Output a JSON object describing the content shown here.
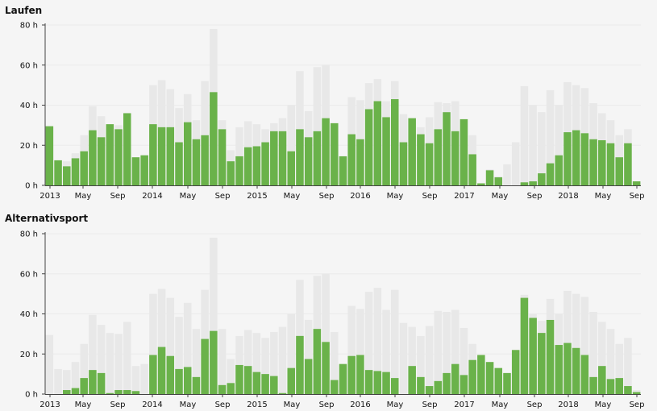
{
  "chart_data": [
    {
      "type": "bar",
      "title": "Laufen",
      "ylim": [
        0,
        80
      ],
      "yticks": [
        "0 h",
        "20 h",
        "40 h",
        "60 h",
        "80 h"
      ],
      "ytick_values": [
        0,
        20,
        40,
        60,
        80
      ],
      "x_tick_labels": [
        "2013",
        "May",
        "Sep",
        "2014",
        "May",
        "Sep",
        "2015",
        "May",
        "Sep",
        "2016",
        "May",
        "Sep",
        "2017",
        "May",
        "Sep",
        "2018",
        "May",
        "Sep"
      ],
      "colors": {
        "series": "#6ab24a",
        "background_series": "#e8e8e8"
      },
      "series": [
        {
          "values": [
            29.5,
            12.5,
            9.5,
            13.5,
            17,
            27.5,
            24,
            30.5,
            28,
            36,
            14,
            15,
            30.5,
            29,
            29,
            21.5,
            31.5,
            23,
            25,
            46.5,
            28,
            12,
            14.5,
            19,
            19.5,
            21.5,
            27,
            27,
            17,
            28,
            24,
            27,
            33.5,
            31,
            14.5,
            25.5,
            23,
            38,
            42,
            34,
            43,
            21.5,
            33.5,
            25.5,
            21,
            28,
            36.5,
            27,
            33,
            15.5,
            1,
            7.5,
            4,
            0,
            0,
            1.5,
            2,
            6,
            11,
            15,
            26.5,
            27.5,
            26,
            23,
            22.5,
            21,
            14,
            21,
            2
          ]
        },
        {
          "values": [
            29.5,
            12.5,
            12,
            16,
            25,
            39.5,
            34.5,
            30.5,
            30,
            36,
            14,
            15,
            50,
            52.5,
            48,
            38.5,
            45.5,
            32.5,
            52,
            78,
            32.5,
            17.5,
            29,
            32,
            30.5,
            28,
            31,
            33.5,
            40,
            57,
            37,
            59,
            60,
            31,
            14.5,
            44,
            42.5,
            51,
            53,
            42,
            52,
            35.5,
            33.5,
            29,
            34,
            41.5,
            41,
            42,
            33,
            25,
            1,
            8,
            4.5,
            10.5,
            21.5,
            49.5,
            40,
            36.5,
            47.5,
            40,
            51.5,
            50,
            48.5,
            41,
            36,
            32.5,
            25,
            28,
            2
          ]
        }
      ]
    },
    {
      "type": "bar",
      "title": "Alternativsport",
      "ylim": [
        0,
        80
      ],
      "yticks": [
        "0 h",
        "20 h",
        "40 h",
        "60 h",
        "80 h"
      ],
      "ytick_values": [
        0,
        20,
        40,
        60,
        80
      ],
      "x_tick_labels": [
        "2013",
        "May",
        "Sep",
        "2014",
        "May",
        "Sep",
        "2015",
        "May",
        "Sep",
        "2016",
        "May",
        "Sep",
        "2017",
        "May",
        "Sep",
        "2018",
        "May",
        "Sep"
      ],
      "colors": {
        "series": "#6ab24a",
        "background_series": "#e8e8e8"
      },
      "series": [
        {
          "values": [
            0,
            0,
            2,
            3,
            8,
            12,
            10.5,
            0.5,
            2,
            2,
            1.5,
            0,
            19.5,
            23.5,
            19,
            12.5,
            13.5,
            8.5,
            27.5,
            31.5,
            4.5,
            5.5,
            14.5,
            14,
            11,
            10,
            9,
            0.5,
            13,
            29,
            17.5,
            32.5,
            26,
            7,
            15,
            19,
            19.5,
            12,
            11.5,
            11,
            8,
            0,
            14,
            8.5,
            4,
            6.5,
            10.5,
            15,
            9.5,
            17,
            19.5,
            16,
            13,
            10.5,
            22,
            48,
            38,
            30.5,
            37,
            24.5,
            25.5,
            23,
            19.5,
            8.5,
            14,
            7.5,
            8,
            4,
            1
          ]
        },
        {
          "values": [
            29.5,
            12.5,
            12,
            16,
            25,
            39.5,
            34.5,
            30.5,
            30,
            36,
            14,
            15,
            50,
            52.5,
            48,
            38.5,
            45.5,
            32.5,
            52,
            78,
            32.5,
            17.5,
            29,
            32,
            30.5,
            28,
            31,
            33.5,
            40,
            57,
            37,
            59,
            60,
            31,
            14.5,
            44,
            42.5,
            51,
            53,
            42,
            52,
            35.5,
            33.5,
            29,
            34,
            41.5,
            41,
            42,
            33,
            25,
            1,
            8,
            4.5,
            10.5,
            21.5,
            49.5,
            40,
            36.5,
            47.5,
            40,
            51.5,
            50,
            48.5,
            41,
            36,
            32.5,
            25,
            28,
            2
          ]
        }
      ]
    }
  ]
}
